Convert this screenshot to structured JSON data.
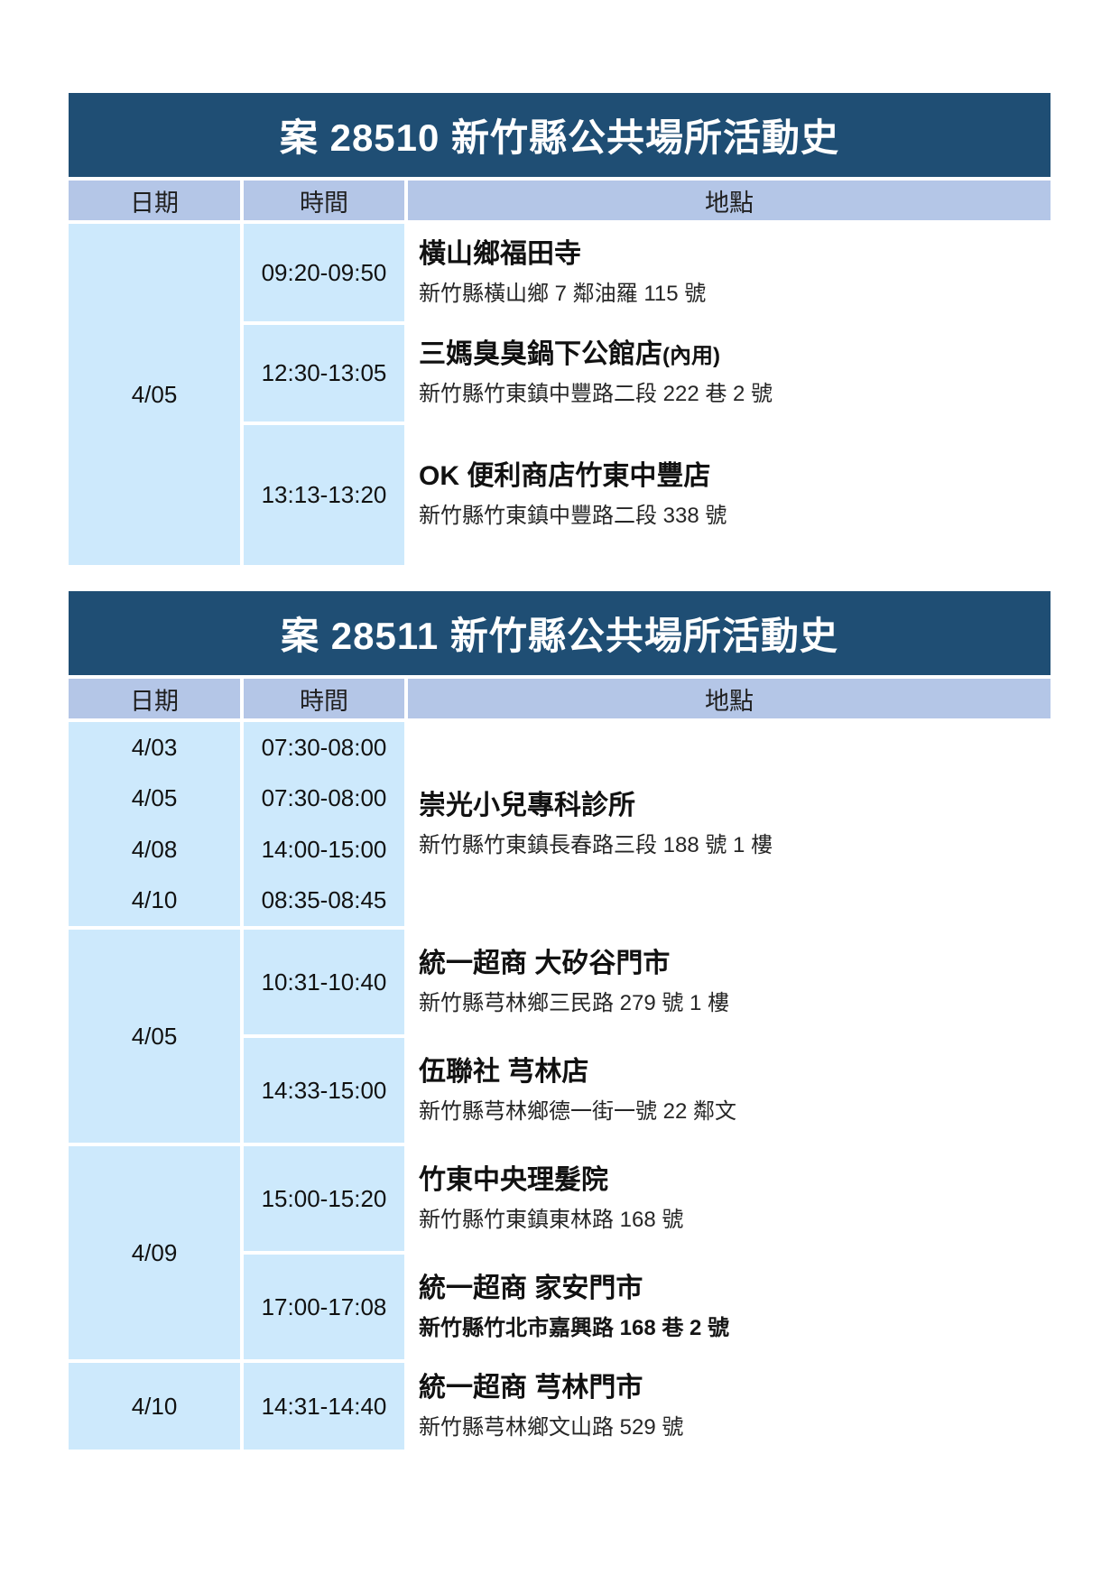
{
  "colors": {
    "title_bg": "#1f4e74",
    "header_bg": "#b4c6e7",
    "cell_bg": "#cde9fc",
    "page_bg": "#ffffff"
  },
  "tables": [
    {
      "title": "案 28510 新竹縣公共場所活動史",
      "columns": [
        "日期",
        "時間",
        "地點"
      ],
      "groups": [
        {
          "date": "4/05",
          "rows": [
            {
              "time": "09:20-09:50",
              "place": "橫山鄉福田寺",
              "address": "新竹縣橫山鄉 7  鄰油羅 115  號"
            },
            {
              "time": "12:30-13:05",
              "place": "三媽臭臭鍋下公館店",
              "place_suffix": "(內用)",
              "address": "新竹縣竹東鎮中豐路二段 222 巷 2 號"
            },
            {
              "time": "13:13-13:20",
              "place": "OK 便利商店竹東中豐店",
              "address": "新竹縣竹東鎮中豐路二段 338 號"
            }
          ]
        }
      ]
    },
    {
      "title": "案 28511 新竹縣公共場所活動史",
      "columns": [
        "日期",
        "時間",
        "地點"
      ],
      "groups": [
        {
          "dates": [
            "4/03",
            "4/05",
            "4/08",
            "4/10"
          ],
          "times": [
            "07:30-08:00",
            "07:30-08:00",
            "14:00-15:00",
            "08:35-08:45"
          ],
          "rows": [
            {
              "place": "崇光小兒專科診所",
              "address": "新竹縣竹東鎮長春路三段 188 號 1 樓"
            }
          ]
        },
        {
          "date": "4/05",
          "rows": [
            {
              "time": "10:31-10:40",
              "place": "統一超商  大矽谷門市",
              "address": "新竹縣芎林鄉三民路 279 號 1 樓"
            },
            {
              "time": "14:33-15:00",
              "place": "伍聯社  芎林店",
              "address": "新竹縣芎林鄉德一街一號 22 鄰文"
            }
          ]
        },
        {
          "date": "4/09",
          "rows": [
            {
              "time": "15:00-15:20",
              "place": "竹東中央理髮院",
              "address": "新竹縣竹東鎮東林路 168 號"
            },
            {
              "time": "17:00-17:08",
              "place": "統一超商  家安門市",
              "address": "新竹縣竹北市嘉興路 168 巷 2 號"
            }
          ]
        },
        {
          "date": "4/10",
          "rows": [
            {
              "time": "14:31-14:40",
              "place": "統一超商  芎林門市",
              "address": "新竹縣芎林鄉文山路 529 號"
            }
          ]
        }
      ]
    }
  ]
}
